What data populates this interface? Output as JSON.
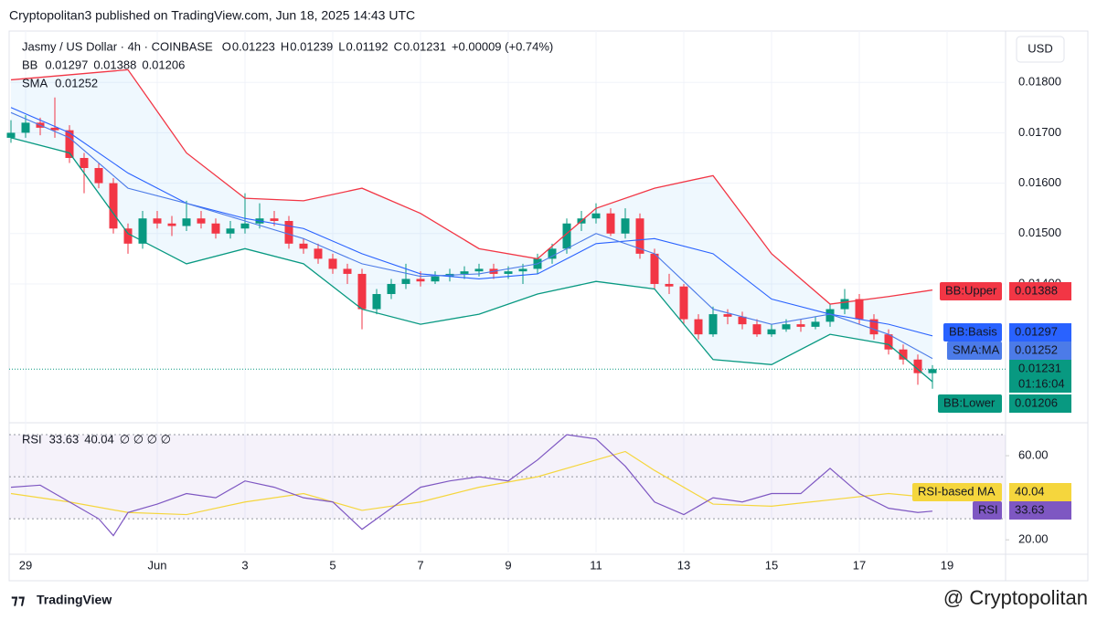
{
  "chart_data": {
    "type": "candlestick",
    "title": "Cryptopolitan3 published on TradingView.com, Jun 18, 2025 14:43 UTC",
    "symbol": "Jasmy / US Dollar · 4h · COINBASE",
    "ohlc_labels": [
      "O",
      "H",
      "L",
      "C"
    ],
    "change": "+0.00009 (+0.74%)",
    "bb_label": "BB",
    "sma_label": "SMA",
    "currency": "USD",
    "countdown": "01:16:04",
    "rsi_label": "RSI",
    "rsi_extra": "∅ ∅ ∅ ∅",
    "tags": {
      "upper": "BB:Upper",
      "basis": "BB:Basis",
      "sma": "SMA:MA",
      "lower": "BB:Lower",
      "rsi_ma": "RSI-based MA",
      "rsi": "RSI"
    },
    "brand": "TradingView",
    "watermark": "@ Cryptopolitan",
    "up_color": "#089981",
    "down_color": "#f23645",
    "upper_color": "#f23645",
    "basis_color": "#2962ff",
    "sma_color": "#4c7be8",
    "lower_color": "#089981",
    "rsi_color": "#7e57c2",
    "rsi_ma_color": "#f5d63d",
    "grid": true,
    "xlim": [
      0,
      68
    ],
    "xticks": [
      {
        "value": 1,
        "label": "29"
      },
      {
        "value": 10,
        "label": "Jun"
      },
      {
        "value": 16,
        "label": "3"
      },
      {
        "value": 22,
        "label": "5"
      },
      {
        "value": 28,
        "label": "7"
      },
      {
        "value": 34,
        "label": "9"
      },
      {
        "value": 40,
        "label": "11"
      },
      {
        "value": 46,
        "label": "13"
      },
      {
        "value": 52,
        "label": "15"
      },
      {
        "value": 58,
        "label": "17"
      },
      {
        "value": 64,
        "label": "19"
      }
    ],
    "ylim": [
      0.0113,
      0.019
    ],
    "yticks": [
      {
        "value": 0.014,
        "label": "0.01400"
      },
      {
        "value": 0.015,
        "label": "0.01500"
      },
      {
        "value": 0.016,
        "label": "0.01600"
      },
      {
        "value": 0.017,
        "label": "0.01700"
      },
      {
        "value": 0.018,
        "label": "0.01800"
      }
    ],
    "candles": [
      [
        0.0169,
        0.01725,
        0.0168,
        0.017
      ],
      [
        0.017,
        0.01735,
        0.0169,
        0.0172
      ],
      [
        0.0172,
        0.0173,
        0.01695,
        0.0171
      ],
      [
        0.0171,
        0.0177,
        0.0169,
        0.01705
      ],
      [
        0.01705,
        0.01715,
        0.0164,
        0.0165
      ],
      [
        0.0165,
        0.0166,
        0.0158,
        0.0163
      ],
      [
        0.0163,
        0.0164,
        0.0159,
        0.016
      ],
      [
        0.016,
        0.0161,
        0.015,
        0.0151
      ],
      [
        0.0151,
        0.0152,
        0.0146,
        0.0148
      ],
      [
        0.0148,
        0.01545,
        0.0147,
        0.0153
      ],
      [
        0.0153,
        0.01545,
        0.0151,
        0.0152
      ],
      [
        0.0152,
        0.01535,
        0.01495,
        0.01515
      ],
      [
        0.01515,
        0.01565,
        0.01505,
        0.0153
      ],
      [
        0.0153,
        0.01545,
        0.0151,
        0.0152
      ],
      [
        0.0152,
        0.0153,
        0.0149,
        0.015
      ],
      [
        0.015,
        0.01525,
        0.0149,
        0.0151
      ],
      [
        0.0151,
        0.0158,
        0.015,
        0.0152
      ],
      [
        0.0152,
        0.0156,
        0.0151,
        0.0153
      ],
      [
        0.0153,
        0.01545,
        0.01515,
        0.01525
      ],
      [
        0.01525,
        0.01535,
        0.0147,
        0.0148
      ],
      [
        0.0148,
        0.0149,
        0.0146,
        0.0147
      ],
      [
        0.0147,
        0.0148,
        0.0144,
        0.0145
      ],
      [
        0.0145,
        0.0146,
        0.0142,
        0.0143
      ],
      [
        0.0143,
        0.0144,
        0.014,
        0.0142
      ],
      [
        0.0142,
        0.0143,
        0.0131,
        0.0135
      ],
      [
        0.0135,
        0.0139,
        0.0134,
        0.0138
      ],
      [
        0.0138,
        0.0141,
        0.0137,
        0.014
      ],
      [
        0.014,
        0.0144,
        0.0139,
        0.0141
      ],
      [
        0.0141,
        0.01425,
        0.01395,
        0.01405
      ],
      [
        0.01405,
        0.01425,
        0.014,
        0.01415
      ],
      [
        0.01415,
        0.0143,
        0.01405,
        0.0142
      ],
      [
        0.0142,
        0.01435,
        0.0141,
        0.01425
      ],
      [
        0.01425,
        0.0144,
        0.01415,
        0.0143
      ],
      [
        0.0143,
        0.0144,
        0.0141,
        0.0142
      ],
      [
        0.0142,
        0.01435,
        0.0141,
        0.01425
      ],
      [
        0.01425,
        0.0144,
        0.014,
        0.0143
      ],
      [
        0.0143,
        0.0146,
        0.0142,
        0.0145
      ],
      [
        0.0145,
        0.0148,
        0.0144,
        0.0147
      ],
      [
        0.0147,
        0.0153,
        0.0146,
        0.0152
      ],
      [
        0.0152,
        0.01545,
        0.01505,
        0.0153
      ],
      [
        0.0153,
        0.0156,
        0.0152,
        0.0154
      ],
      [
        0.0154,
        0.0155,
        0.01495,
        0.015
      ],
      [
        0.015,
        0.0155,
        0.0149,
        0.0153
      ],
      [
        0.0153,
        0.0154,
        0.0145,
        0.0146
      ],
      [
        0.0146,
        0.0147,
        0.0139,
        0.014
      ],
      [
        0.014,
        0.0142,
        0.0138,
        0.01395
      ],
      [
        0.01395,
        0.014,
        0.0132,
        0.0133
      ],
      [
        0.0133,
        0.0134,
        0.0129,
        0.013
      ],
      [
        0.013,
        0.01355,
        0.01295,
        0.0134
      ],
      [
        0.0134,
        0.0135,
        0.0132,
        0.01335
      ],
      [
        0.01335,
        0.01345,
        0.0131,
        0.0132
      ],
      [
        0.0132,
        0.0133,
        0.01295,
        0.013
      ],
      [
        0.013,
        0.0132,
        0.01295,
        0.0131
      ],
      [
        0.0131,
        0.0133,
        0.01305,
        0.0132
      ],
      [
        0.0132,
        0.0133,
        0.01305,
        0.01315
      ],
      [
        0.01315,
        0.01335,
        0.0131,
        0.01325
      ],
      [
        0.01325,
        0.0136,
        0.01315,
        0.0135
      ],
      [
        0.0135,
        0.0139,
        0.0134,
        0.0137
      ],
      [
        0.0137,
        0.0138,
        0.0132,
        0.0133
      ],
      [
        0.0133,
        0.0134,
        0.0129,
        0.013
      ],
      [
        0.013,
        0.0131,
        0.0126,
        0.0127
      ],
      [
        0.0127,
        0.0128,
        0.0124,
        0.0125
      ],
      [
        0.0125,
        0.0126,
        0.012,
        0.01223
      ],
      [
        0.01223,
        0.01239,
        0.01192,
        0.01231
      ]
    ],
    "band_x": [
      0,
      4,
      8,
      12,
      16,
      20,
      24,
      28,
      32,
      36,
      40,
      44,
      48,
      52,
      56,
      60,
      63
    ],
    "bb_upper": [
      0.01805,
      0.01815,
      0.01825,
      0.0166,
      0.0157,
      0.01565,
      0.0159,
      0.0154,
      0.0147,
      0.0145,
      0.0155,
      0.0159,
      0.01615,
      0.0146,
      0.0136,
      0.01375,
      0.01388
    ],
    "bb_basis": [
      0.0175,
      0.017,
      0.0162,
      0.0156,
      0.0153,
      0.0151,
      0.0146,
      0.0142,
      0.0141,
      0.0142,
      0.0148,
      0.0149,
      0.0146,
      0.0137,
      0.0134,
      0.0132,
      0.01297
    ],
    "sma": [
      0.0174,
      0.0169,
      0.0159,
      0.0156,
      0.01525,
      0.0149,
      0.0144,
      0.01415,
      0.0142,
      0.0144,
      0.015,
      0.0146,
      0.0135,
      0.0132,
      0.0134,
      0.013,
      0.01252
    ],
    "bb_lower": [
      0.0169,
      0.0166,
      0.015,
      0.0144,
      0.0147,
      0.0144,
      0.0135,
      0.0132,
      0.0134,
      0.0138,
      0.01405,
      0.0139,
      0.0125,
      0.0124,
      0.013,
      0.0128,
      0.01206
    ],
    "rsi_ylim": [
      14,
      73.5
    ],
    "rsi_yticks": [
      {
        "value": 20,
        "label": "20.00"
      },
      {
        "value": 60,
        "label": "60.00"
      }
    ],
    "rsi_levels": [
      30,
      50,
      70
    ],
    "rsi_x": [
      0,
      2,
      4,
      6,
      7,
      8,
      10,
      12,
      14,
      16,
      18,
      20,
      22,
      24,
      26,
      28,
      30,
      32,
      34,
      36,
      38,
      40,
      42,
      44,
      46,
      48,
      50,
      52,
      54,
      56,
      58,
      60,
      62,
      63
    ],
    "rsi": [
      45,
      46,
      38,
      30,
      22,
      33,
      37,
      42,
      40,
      48,
      45,
      40,
      38,
      25,
      35,
      45,
      48,
      50,
      48,
      58,
      70,
      68,
      55,
      38,
      32,
      40,
      38,
      42,
      42,
      54,
      42,
      35,
      33,
      33.63
    ],
    "rsi_ma_x": [
      0,
      4,
      8,
      12,
      16,
      20,
      24,
      28,
      32,
      36,
      40,
      42,
      44,
      48,
      52,
      56,
      60,
      63
    ],
    "rsi_ma": [
      42,
      38,
      33,
      32,
      38,
      42,
      34,
      38,
      45,
      50,
      58,
      62,
      53,
      37,
      36,
      39,
      42,
      40.04
    ]
  }
}
